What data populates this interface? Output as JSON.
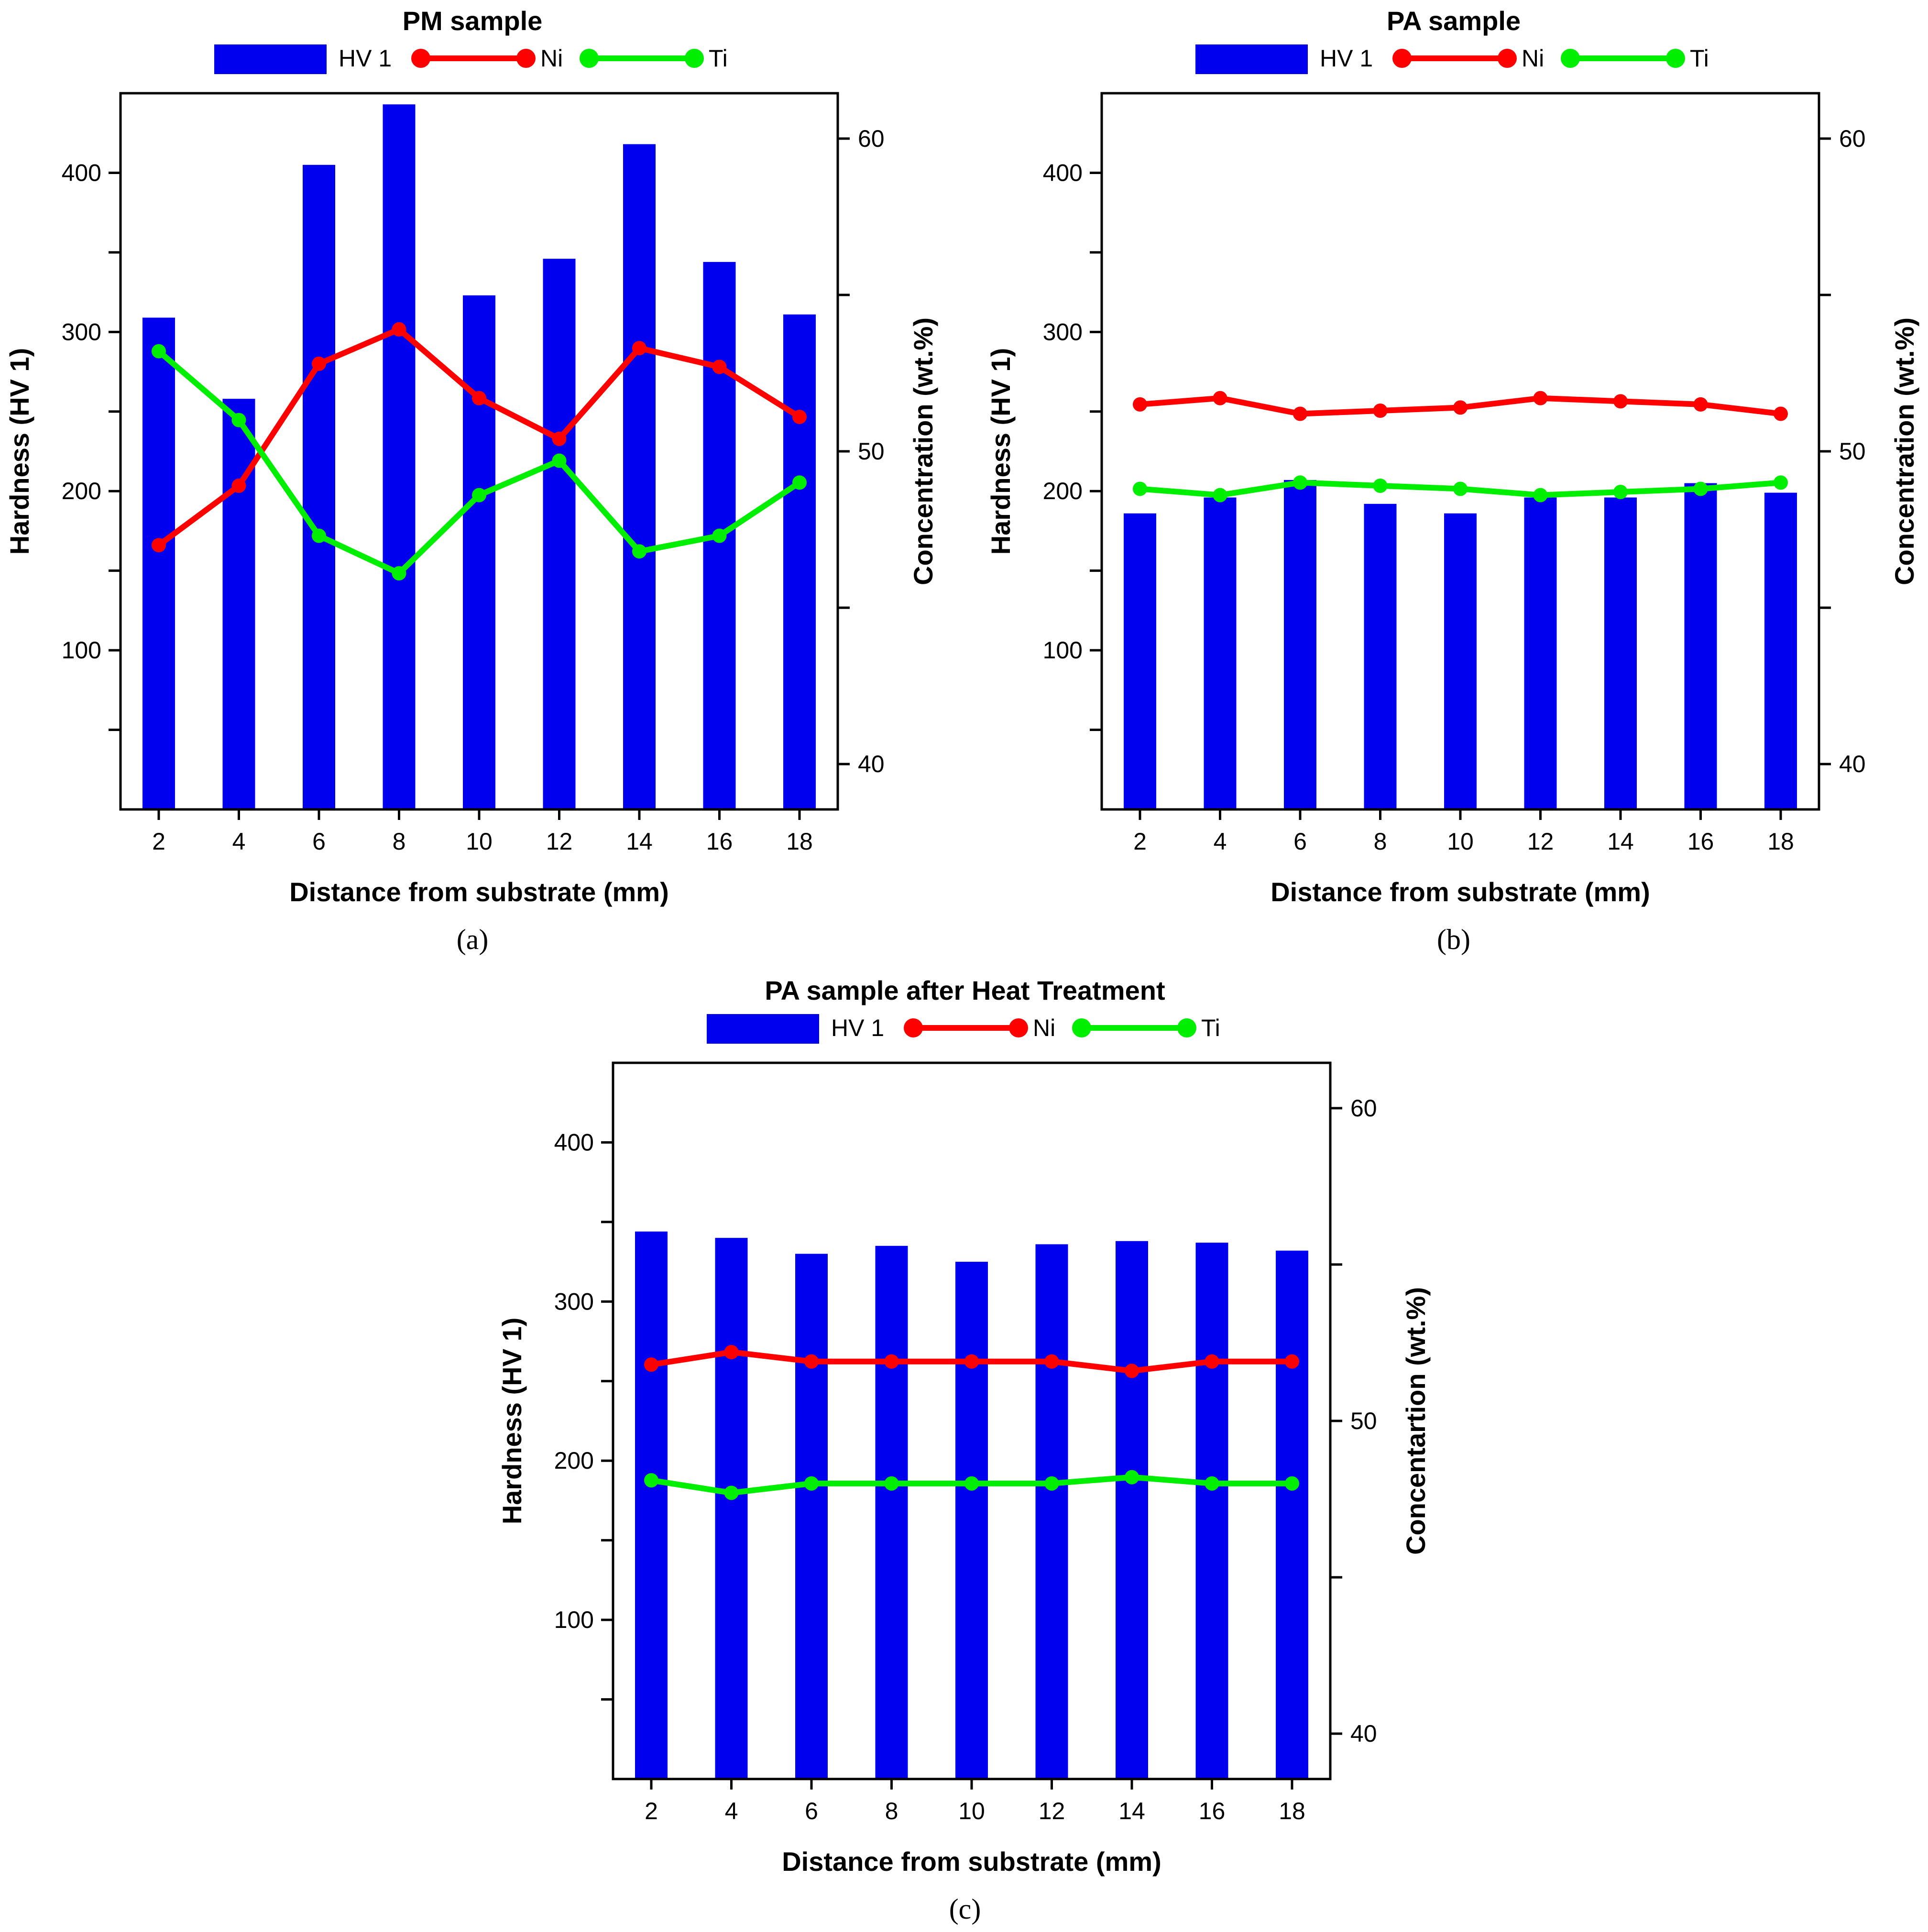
{
  "colors": {
    "bar": "#0000ee",
    "ni": "#ff0000",
    "ti": "#00ee00"
  },
  "chart_data": [
    {
      "type": "bar",
      "title": "PM sample",
      "caption": "(a)",
      "xlabel": "Distance from substrate (mm)",
      "ylabel": "Hardness (HV 1)",
      "y2label": "Concentration (wt.%)",
      "ylim": [
        0,
        450
      ],
      "y2lim": [
        38.55,
        61.45
      ],
      "yticks": [
        100,
        200,
        300,
        400
      ],
      "y2ticks": [
        40,
        50,
        60
      ],
      "categories": [
        "2",
        "4",
        "6",
        "8",
        "10",
        "12",
        "14",
        "16",
        "18"
      ],
      "legend_position": "top",
      "series": [
        {
          "name": "HV 1",
          "kind": "bar",
          "axis": "left",
          "values": [
            309,
            258,
            405,
            443,
            323,
            346,
            418,
            344,
            311
          ]
        },
        {
          "name": "Ni",
          "kind": "line",
          "axis": "right",
          "values": [
            47.0,
            48.9,
            52.8,
            53.9,
            51.7,
            50.4,
            53.3,
            52.7,
            51.1
          ]
        },
        {
          "name": "Ti",
          "kind": "line",
          "axis": "right",
          "values": [
            53.2,
            51.0,
            47.3,
            46.1,
            48.6,
            49.7,
            46.8,
            47.3,
            49.0
          ]
        }
      ]
    },
    {
      "type": "bar",
      "title": "PA sample",
      "caption": "(b)",
      "xlabel": "Distance from substrate (mm)",
      "ylabel": "Hardness (HV 1)",
      "y2label": "Concentration (wt.%)",
      "ylim": [
        0,
        450
      ],
      "y2lim": [
        38.55,
        61.45
      ],
      "yticks": [
        100,
        200,
        300,
        400
      ],
      "y2ticks": [
        40,
        50,
        60
      ],
      "categories": [
        "2",
        "4",
        "6",
        "8",
        "10",
        "12",
        "14",
        "16",
        "18"
      ],
      "legend_position": "top",
      "series": [
        {
          "name": "HV 1",
          "kind": "bar",
          "axis": "left",
          "values": [
            186,
            196,
            207,
            192,
            186,
            196,
            196,
            205,
            199
          ]
        },
        {
          "name": "Ni",
          "kind": "line",
          "axis": "right",
          "values": [
            51.5,
            51.7,
            51.2,
            51.3,
            51.4,
            51.7,
            51.6,
            51.5,
            51.2
          ]
        },
        {
          "name": "Ti",
          "kind": "line",
          "axis": "right",
          "values": [
            48.8,
            48.6,
            49.0,
            48.9,
            48.8,
            48.6,
            48.7,
            48.8,
            49.0
          ]
        }
      ]
    },
    {
      "type": "bar",
      "title": "PA sample after Heat Treatment",
      "caption": "(c)",
      "xlabel": "Distance from substrate (mm)",
      "ylabel": "Hardness (HV 1)",
      "y2label": "Concentartion (wt.%)",
      "ylim": [
        0,
        450
      ],
      "y2lim": [
        38.55,
        61.45
      ],
      "yticks": [
        100,
        200,
        300,
        400
      ],
      "y2ticks": [
        40,
        50,
        60
      ],
      "categories": [
        "2",
        "4",
        "6",
        "8",
        "10",
        "12",
        "14",
        "16",
        "18"
      ],
      "legend_position": "top",
      "series": [
        {
          "name": "HV 1",
          "kind": "bar",
          "axis": "left",
          "values": [
            344,
            340,
            330,
            335,
            325,
            336,
            338,
            337,
            332
          ]
        },
        {
          "name": "Ni",
          "kind": "line",
          "axis": "right",
          "values": [
            51.8,
            52.2,
            51.9,
            51.9,
            51.9,
            51.9,
            51.6,
            51.9,
            51.9
          ]
        },
        {
          "name": "Ti",
          "kind": "line",
          "axis": "right",
          "values": [
            48.1,
            47.7,
            48.0,
            48.0,
            48.0,
            48.0,
            48.2,
            48.0,
            48.0
          ]
        }
      ]
    }
  ]
}
